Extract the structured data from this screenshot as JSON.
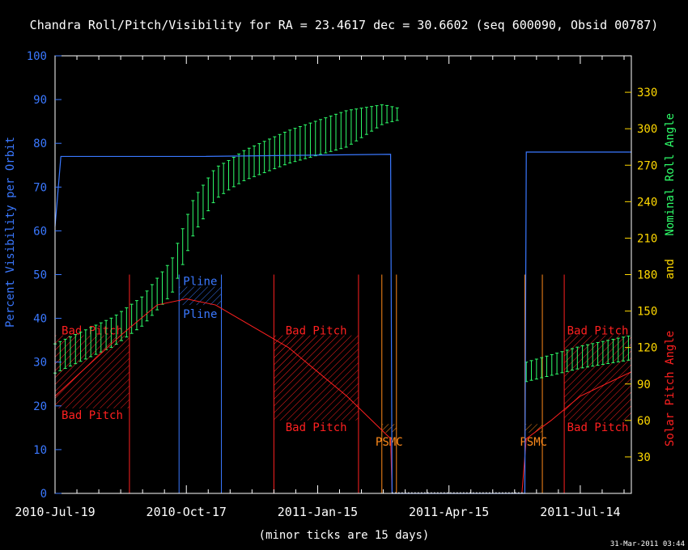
{
  "chart_data": {
    "type": "line",
    "title": "Chandra Roll/Pitch/Visibility for RA = 23.4617 dec = 30.6602 (seq 600090, Obsid 00787)",
    "xlabel": "(minor ticks are 15 days)",
    "timestamp": "31-Mar-2011 03:44",
    "x_axis": {
      "range_days": [
        0,
        395
      ],
      "tick_days": [
        0,
        90,
        180,
        270,
        360
      ],
      "tick_labels": [
        "2010-Jul-19",
        "2010-Oct-17",
        "2011-Jan-15",
        "2011-Apr-15",
        "2011-Jul-14"
      ],
      "minor_tick_interval_days": 15
    },
    "left_axis": {
      "label": "Percent Visibility per Orbit",
      "ylim": [
        0,
        100
      ],
      "ticks": [
        0,
        10,
        20,
        30,
        40,
        50,
        60,
        70,
        80,
        90,
        100
      ],
      "color": "#3a78ff"
    },
    "right_axis": {
      "label_parts": [
        {
          "text": "Nominal Roll Angle",
          "color": "#2eff6a"
        },
        {
          "text": "and",
          "color": "#ffd800"
        },
        {
          "text": "Solar Pitch Angle",
          "color": "#ff2020"
        }
      ],
      "ylim": [
        0,
        360
      ],
      "ticks": [
        30,
        60,
        90,
        120,
        150,
        180,
        210,
        240,
        270,
        300,
        330
      ],
      "color": "#ffd800"
    },
    "visibility": {
      "color": "#3a78ff",
      "points": [
        [
          0,
          61
        ],
        [
          4,
          77
        ],
        [
          100,
          77
        ],
        [
          230,
          77.5
        ],
        [
          231,
          0
        ],
        [
          240,
          0
        ],
        [
          320,
          0
        ],
        [
          322,
          0
        ],
        [
          323,
          78
        ],
        [
          395,
          78
        ]
      ]
    },
    "roll": {
      "color": "#2eff6a",
      "day_range": [
        0,
        235
      ],
      "step_days": 3.5,
      "gap": [
        236,
        322
      ],
      "day_range_2": [
        323,
        395
      ],
      "center_points": [
        [
          0,
          111
        ],
        [
          40,
          133
        ],
        [
          60,
          150
        ],
        [
          80,
          178
        ],
        [
          95,
          228
        ],
        [
          110,
          255
        ],
        [
          130,
          270
        ],
        [
          160,
          285
        ],
        [
          200,
          300
        ],
        [
          225,
          312
        ],
        [
          235,
          312
        ],
        [
          323,
          100
        ],
        [
          360,
          112
        ],
        [
          395,
          120
        ]
      ],
      "half_width_points": [
        [
          0,
          12
        ],
        [
          60,
          12
        ],
        [
          90,
          15
        ],
        [
          120,
          12
        ],
        [
          200,
          15
        ],
        [
          235,
          5
        ],
        [
          323,
          8
        ],
        [
          395,
          10
        ]
      ]
    },
    "pitch": {
      "color": "#ff2020",
      "points": [
        [
          0,
          80
        ],
        [
          45,
          130
        ],
        [
          70,
          155
        ],
        [
          90,
          160
        ],
        [
          110,
          155
        ],
        [
          160,
          120
        ],
        [
          200,
          80
        ],
        [
          230,
          45
        ],
        [
          231,
          0
        ],
        [
          320,
          0
        ],
        [
          323,
          45
        ],
        [
          340,
          60
        ],
        [
          360,
          80
        ],
        [
          395,
          100
        ]
      ]
    },
    "bad_pitch_regions": [
      {
        "day_start": 0,
        "day_end": 51,
        "pitch_range": [
          70,
          130
        ],
        "labels": [
          "Bad Pitch",
          "Bad Pitch"
        ]
      },
      {
        "day_start": 150,
        "day_end": 208,
        "pitch_range": [
          60,
          130
        ],
        "labels": [
          "Bad Pitch",
          "Bad Pitch"
        ]
      },
      {
        "day_start": 349,
        "day_end": 395,
        "pitch_range": [
          60,
          130
        ],
        "labels": [
          "Bad Pitch",
          "Bad Pitch"
        ]
      }
    ],
    "pline_regions": [
      {
        "day_start": 85,
        "day_end": 114,
        "pitch_range": [
          155,
          170
        ],
        "labels": [
          "Pline",
          "Pline"
        ]
      }
    ],
    "psmc_regions": [
      {
        "day_start": 224,
        "day_end": 234,
        "pitch_range": [
          50,
          57
        ],
        "label": "PSMC"
      },
      {
        "day_start": 322,
        "day_end": 334,
        "pitch_range": [
          50,
          57
        ],
        "label": "PSMC"
      }
    ],
    "vertical_markers": [
      {
        "day": 51,
        "color": "#ff2020",
        "top_pitch": 180
      },
      {
        "day": 150,
        "color": "#ff2020",
        "top_pitch": 180
      },
      {
        "day": 208,
        "color": "#ff2020",
        "top_pitch": 180
      },
      {
        "day": 224,
        "color": "#ff8a1a",
        "top_pitch": 180
      },
      {
        "day": 234,
        "color": "#ff8a1a",
        "top_pitch": 180
      },
      {
        "day": 322,
        "color": "#ff8a1a",
        "top_pitch": 180
      },
      {
        "day": 334,
        "color": "#ff8a1a",
        "top_pitch": 180
      },
      {
        "day": 349,
        "color": "#ff2020",
        "top_pitch": 180
      },
      {
        "day": 85,
        "color": "#3a78ff",
        "top_pitch": 180
      },
      {
        "day": 114,
        "color": "#3a78ff",
        "top_pitch": 180
      }
    ]
  }
}
